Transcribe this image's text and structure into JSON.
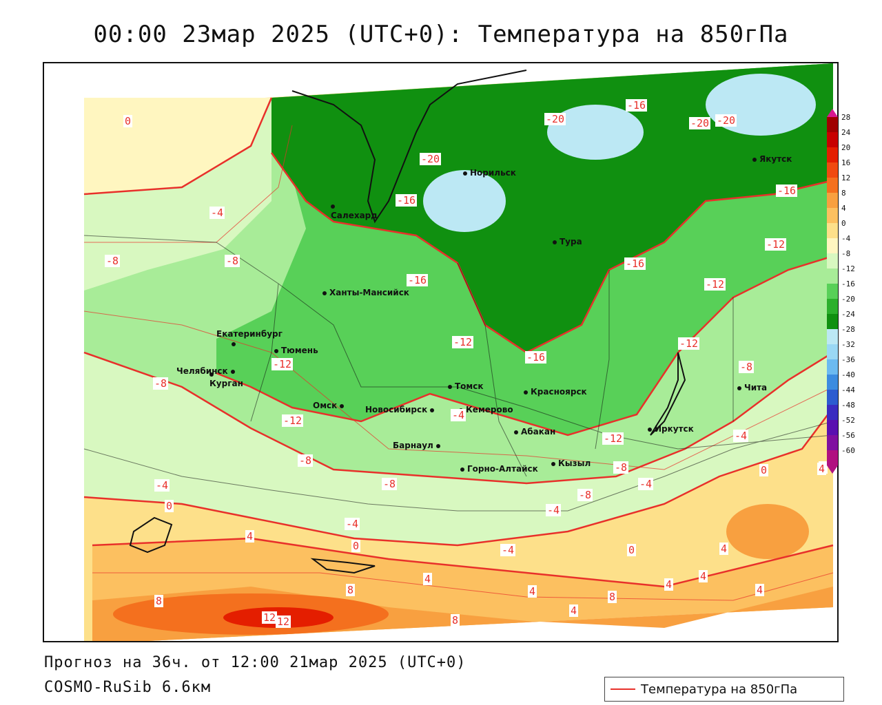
{
  "title": "00:00 23мар 2025 (UTC+0): Температура на 850гПа",
  "footer": {
    "forecast": "Прогноз на 36ч. от 12:00 21мар 2025 (UTC+0)",
    "model": "COSMO-RuSib 6.6км"
  },
  "legend": {
    "label": "Температура на 850гПа",
    "line_color": "#e8302a"
  },
  "colorbar": {
    "labels": [
      "28",
      "24",
      "20",
      "16",
      "12",
      "8",
      "4",
      "0",
      "-4",
      "-8",
      "-12",
      "-16",
      "-20",
      "-24",
      "-28",
      "-32",
      "-36",
      "-40",
      "-44",
      "-48",
      "-52",
      "-56",
      "-60"
    ],
    "colors": [
      "#a00000",
      "#c80000",
      "#e41e00",
      "#f04a10",
      "#f4701e",
      "#f8a040",
      "#fcc060",
      "#fde08a",
      "#fff6c0",
      "#d8f8c0",
      "#a8ec98",
      "#58d058",
      "#2cb02c",
      "#109010",
      "#bce8f4",
      "#9ad8f4",
      "#6cbaf0",
      "#3c8ce0",
      "#2c5cd0",
      "#3a2cc0",
      "#5a10b0",
      "#8010a0",
      "#b01080"
    ]
  },
  "cities": [
    {
      "name": "Норильск"
    },
    {
      "name": "Якутск"
    },
    {
      "name": "Салехард"
    },
    {
      "name": "Тура"
    },
    {
      "name": "Ханты-Мансийск"
    },
    {
      "name": "Екатеринбург"
    },
    {
      "name": "Тюмень"
    },
    {
      "name": "Челябинск"
    },
    {
      "name": "Курган"
    },
    {
      "name": "Омск"
    },
    {
      "name": "Новосибирск"
    },
    {
      "name": "Томск"
    },
    {
      "name": "Кемерово"
    },
    {
      "name": "Красноярск"
    },
    {
      "name": "Абакан"
    },
    {
      "name": "Барнаул"
    },
    {
      "name": "Горно-Алтайск"
    },
    {
      "name": "Кызыл"
    },
    {
      "name": "Иркутск"
    },
    {
      "name": "Чита"
    }
  ],
  "isotherm_labels": [
    "0",
    "-4",
    "-8",
    "-8",
    "-4",
    "0",
    "-8",
    "-12",
    "-12",
    "-8",
    "-4",
    "4",
    "-8",
    "-4",
    "0",
    "8",
    "12",
    "12",
    "4",
    "8",
    "-16",
    "-12",
    "-16",
    "-16",
    "-20",
    "-20",
    "-12",
    "-16",
    "-20",
    "-20",
    "-16",
    "-12",
    "-16",
    "-12",
    "-12",
    "-8",
    "-8",
    "-8",
    "-4",
    "-4",
    "-4",
    "-4",
    "0",
    "4",
    "4",
    "4",
    "4",
    "4",
    "4",
    "8",
    "8",
    "4",
    "0",
    "4"
  ]
}
